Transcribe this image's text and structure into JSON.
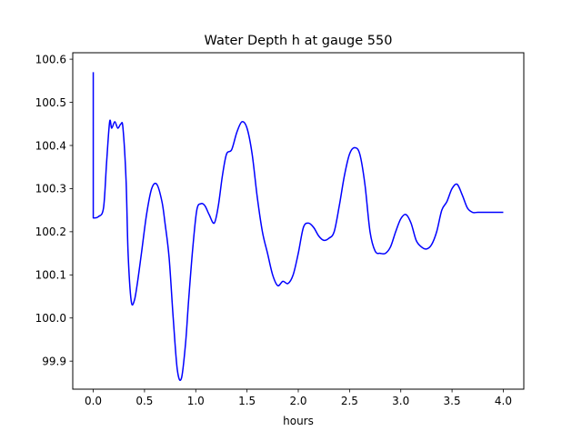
{
  "chart_data": {
    "type": "line",
    "title": "Water Depth h at gauge 550",
    "xlabel": "hours",
    "ylabel": "",
    "xlim": [
      -0.2,
      4.2
    ],
    "ylim": [
      99.835,
      100.615
    ],
    "grid": false,
    "legend": "none",
    "xticks": [
      0.0,
      0.5,
      1.0,
      1.5,
      2.0,
      2.5,
      3.0,
      3.5,
      4.0
    ],
    "xtick_labels": [
      "0.0",
      "0.5",
      "1.0",
      "1.5",
      "2.0",
      "2.5",
      "3.0",
      "3.5",
      "4.0"
    ],
    "yticks": [
      99.9,
      100.0,
      100.1,
      100.2,
      100.3,
      100.4,
      100.5,
      100.6
    ],
    "ytick_labels": [
      "99.9",
      "100.0",
      "100.1",
      "100.2",
      "100.3",
      "100.4",
      "100.5",
      "100.6"
    ],
    "series": [
      {
        "color": "#0000ff",
        "x": [
          0.0,
          0.0,
          0.01,
          0.05,
          0.1,
          0.13,
          0.16,
          0.18,
          0.21,
          0.24,
          0.27,
          0.29,
          0.32,
          0.34,
          0.37,
          0.4,
          0.43,
          0.47,
          0.52,
          0.57,
          0.62,
          0.67,
          0.7,
          0.74,
          0.78,
          0.82,
          0.86,
          0.9,
          0.93,
          0.97,
          1.01,
          1.05,
          1.09,
          1.13,
          1.18,
          1.22,
          1.26,
          1.3,
          1.35,
          1.4,
          1.45,
          1.5,
          1.55,
          1.6,
          1.65,
          1.7,
          1.75,
          1.8,
          1.85,
          1.9,
          1.95,
          2.0,
          2.05,
          2.1,
          2.15,
          2.2,
          2.25,
          2.3,
          2.35,
          2.4,
          2.45,
          2.5,
          2.55,
          2.6,
          2.65,
          2.7,
          2.75,
          2.8,
          2.85,
          2.9,
          2.95,
          3.0,
          3.05,
          3.1,
          3.15,
          3.2,
          3.25,
          3.3,
          3.35,
          3.4,
          3.45,
          3.5,
          3.55,
          3.6,
          3.65,
          3.7,
          3.75,
          3.8,
          3.85,
          3.9,
          3.95,
          4.0
        ],
        "y": [
          100.57,
          100.232,
          100.232,
          100.235,
          100.255,
          100.36,
          100.455,
          100.44,
          100.455,
          100.44,
          100.45,
          100.44,
          100.32,
          100.15,
          100.04,
          100.04,
          100.08,
          100.15,
          100.24,
          100.3,
          100.31,
          100.27,
          100.22,
          100.14,
          100.0,
          99.88,
          99.86,
          99.94,
          100.04,
          100.16,
          100.25,
          100.265,
          100.26,
          100.24,
          100.22,
          100.26,
          100.33,
          100.38,
          100.39,
          100.43,
          100.455,
          100.44,
          100.38,
          100.28,
          100.2,
          100.15,
          100.1,
          100.075,
          100.085,
          100.08,
          100.1,
          100.15,
          100.21,
          100.22,
          100.21,
          100.19,
          100.18,
          100.185,
          100.2,
          100.26,
          100.33,
          100.38,
          100.395,
          100.38,
          100.31,
          100.2,
          100.155,
          100.15,
          100.15,
          100.165,
          100.2,
          100.23,
          100.24,
          100.22,
          100.18,
          100.165,
          100.16,
          100.17,
          100.2,
          100.25,
          100.27,
          100.3,
          100.31,
          100.285,
          100.255,
          100.245,
          100.245,
          100.245,
          100.245,
          100.245,
          100.245,
          100.245
        ]
      }
    ]
  }
}
